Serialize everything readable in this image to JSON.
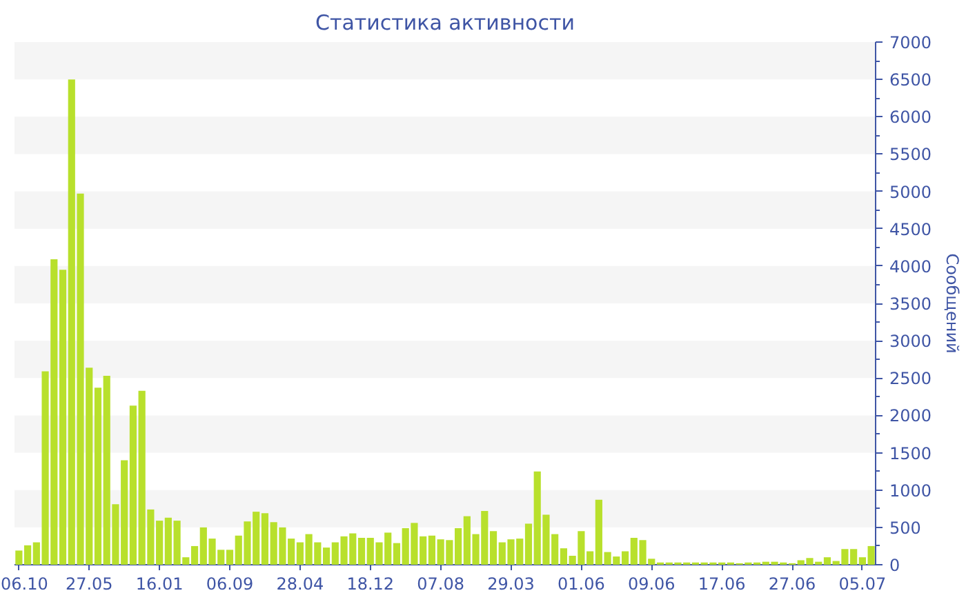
{
  "chart_data": {
    "type": "bar",
    "title": "Статистика активности",
    "ylabel": "Сообщений",
    "color": "#b8e02c",
    "categories": [
      "06.10",
      null,
      null,
      null,
      null,
      null,
      null,
      null,
      "27.05",
      null,
      null,
      null,
      null,
      null,
      null,
      null,
      "16.01",
      null,
      null,
      null,
      null,
      null,
      null,
      null,
      "06.09",
      null,
      null,
      null,
      null,
      null,
      null,
      null,
      "28.04",
      null,
      null,
      null,
      null,
      null,
      null,
      null,
      "18.12",
      null,
      null,
      null,
      null,
      null,
      null,
      null,
      "07.08",
      null,
      null,
      null,
      null,
      null,
      null,
      null,
      "29.03",
      null,
      null,
      null,
      null,
      null,
      null,
      null,
      "01.06",
      null,
      null,
      null,
      null,
      null,
      null,
      null,
      "09.06",
      null,
      null,
      null,
      null,
      null,
      null,
      null,
      "17.06",
      null,
      null,
      null,
      null,
      null,
      null,
      null,
      "27.06",
      null,
      null,
      null,
      null,
      null,
      null,
      null,
      "05.07",
      null
    ],
    "values": [
      190,
      260,
      300,
      2590,
      4090,
      3950,
      6500,
      4970,
      2640,
      2370,
      2530,
      810,
      1400,
      2130,
      2330,
      740,
      590,
      630,
      590,
      100,
      250,
      500,
      350,
      200,
      200,
      390,
      580,
      710,
      690,
      570,
      500,
      350,
      300,
      410,
      300,
      230,
      300,
      380,
      420,
      360,
      360,
      300,
      430,
      290,
      490,
      560,
      380,
      390,
      340,
      330,
      490,
      650,
      410,
      720,
      450,
      300,
      340,
      350,
      550,
      1250,
      670,
      410,
      220,
      120,
      450,
      180,
      870,
      170,
      110,
      180,
      360,
      330,
      80,
      30,
      30,
      30,
      30,
      30,
      30,
      30,
      30,
      30,
      20,
      30,
      30,
      40,
      40,
      30,
      20,
      60,
      90,
      40,
      100,
      50,
      210,
      210,
      100,
      250
    ],
    "ylim": [
      0,
      7000
    ],
    "yticks": [
      0,
      500,
      1000,
      1500,
      2000,
      2500,
      3000,
      3500,
      4000,
      4500,
      5000,
      5500,
      6000,
      6500,
      7000
    ]
  }
}
